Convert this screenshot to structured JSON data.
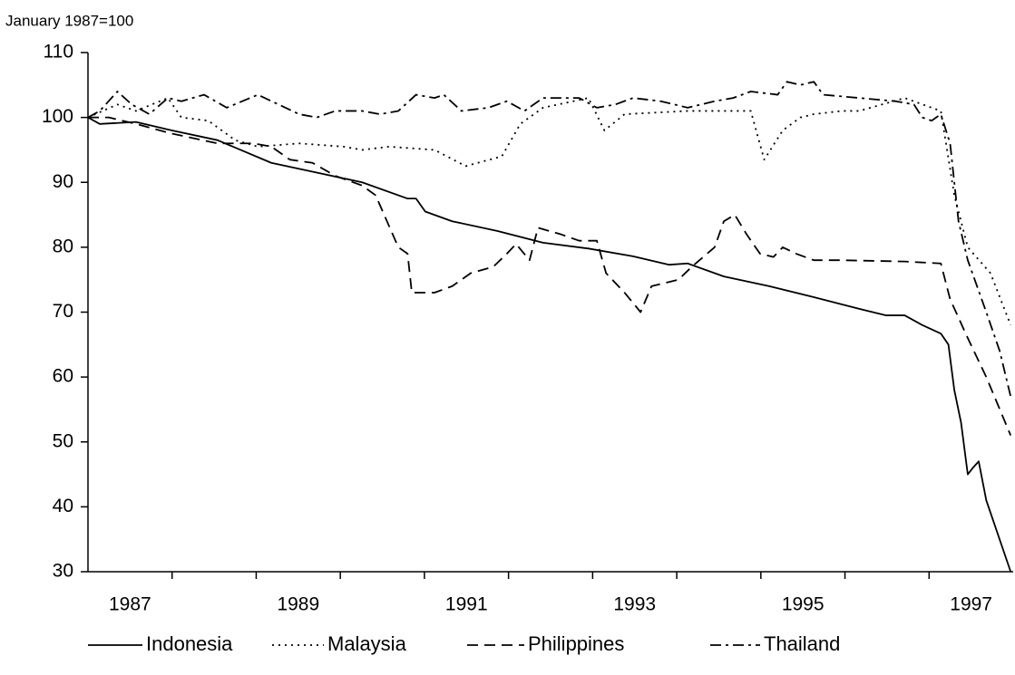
{
  "chart_data": {
    "type": "line",
    "y_label": "January 1987=100",
    "xlim": [
      1987,
      1998
    ],
    "xticks": [
      {
        "value": 1987.5,
        "label": "1987"
      },
      {
        "value": 1989.5,
        "label": "1989"
      },
      {
        "value": 1991.5,
        "label": "1991"
      },
      {
        "value": 1993.5,
        "label": "1993"
      },
      {
        "value": 1995.5,
        "label": "1995"
      },
      {
        "value": 1997.5,
        "label": "1997"
      }
    ],
    "xtick_marks": [
      1988,
      1989,
      1990,
      1991,
      1992,
      1993,
      1994,
      1995,
      1996,
      1997
    ],
    "ylim": [
      30,
      110
    ],
    "yticks": [
      30,
      40,
      50,
      60,
      70,
      80,
      90,
      100,
      110
    ],
    "legend": "bottom",
    "series": [
      {
        "name": "Indonesia",
        "color": "#000000",
        "dash": "solid",
        "x": [
          1987.0,
          1987.14,
          1987.57,
          1988.0,
          1988.54,
          1989.18,
          1989.72,
          1990.26,
          1990.8,
          1990.9,
          1991.01,
          1991.33,
          1991.87,
          1992.41,
          1992.95,
          1993.48,
          1993.91,
          1994.13,
          1994.56,
          1995.1,
          1995.63,
          1996.17,
          1996.49,
          1996.71,
          1996.92,
          1997.14,
          1997.23,
          1997.3,
          1997.38,
          1997.46,
          1997.52,
          1997.59,
          1997.68,
          1997.97
        ],
        "values": [
          100,
          99,
          99.3,
          98,
          96.5,
          93,
          91.5,
          90,
          87.5,
          87.5,
          85.5,
          84,
          82.5,
          80.7,
          79.8,
          78.6,
          77.3,
          77.5,
          75.5,
          74,
          72.3,
          70.5,
          69.5,
          69.5,
          68,
          66.7,
          65,
          58,
          53,
          45,
          46,
          47,
          41,
          30
        ]
      },
      {
        "name": "Malaysia",
        "color": "#000000",
        "dash": "dotted",
        "x": [
          1987.0,
          1987.35,
          1987.57,
          1987.95,
          1988.11,
          1988.43,
          1988.75,
          1989.02,
          1989.51,
          1990.04,
          1990.26,
          1990.58,
          1991.12,
          1991.49,
          1991.92,
          1992.14,
          1992.41,
          1992.95,
          1993.14,
          1993.38,
          1994.13,
          1994.88,
          1995.04,
          1995.26,
          1995.47,
          1995.63,
          1995.96,
          1996.17,
          1996.71,
          1997.03,
          1997.14,
          1997.3,
          1997.46,
          1997.73,
          1997.97
        ],
        "values": [
          100,
          102,
          101,
          103,
          100,
          99.5,
          96.5,
          95.5,
          96,
          95.5,
          95,
          95.5,
          95,
          92.5,
          94,
          99,
          101.5,
          103,
          98,
          100.5,
          101,
          101,
          93.5,
          98,
          100,
          100.5,
          101,
          101,
          103,
          101.5,
          101,
          88,
          80,
          76,
          68
        ]
      },
      {
        "name": "Philippines",
        "color": "#000000",
        "dash": "dashed",
        "x": [
          1987.0,
          1987.25,
          1987.57,
          1988.0,
          1988.54,
          1988.97,
          1989.18,
          1989.4,
          1989.67,
          1989.94,
          1990.26,
          1990.42,
          1990.69,
          1990.8,
          1990.85,
          1991.12,
          1991.33,
          1991.55,
          1991.82,
          1991.98,
          1992.09,
          1992.25,
          1992.35,
          1992.62,
          1992.84,
          1993.05,
          1993.16,
          1993.38,
          1993.57,
          1993.7,
          1994.02,
          1994.18,
          1994.45,
          1994.56,
          1994.69,
          1994.83,
          1994.99,
          1995.15,
          1995.26,
          1995.42,
          1995.63,
          1995.96,
          1996.71,
          1997.14,
          1997.25,
          1997.46,
          1997.68,
          1997.97
        ],
        "values": [
          100,
          100,
          99,
          97.5,
          96,
          96,
          95.5,
          93.5,
          93,
          91,
          89.5,
          88,
          80,
          79,
          73,
          73,
          74,
          76,
          77,
          79,
          80.5,
          78,
          83,
          82,
          81,
          81,
          76,
          73,
          70,
          74,
          75,
          77,
          80,
          84,
          85,
          82,
          79,
          78.5,
          80,
          79,
          78,
          78,
          77.8,
          77.5,
          72,
          66,
          60,
          51
        ]
      },
      {
        "name": "Thailand",
        "color": "#000000",
        "dash": "dashdot",
        "x": [
          1987.0,
          1987.14,
          1987.35,
          1987.52,
          1987.73,
          1987.95,
          1988.11,
          1988.38,
          1988.65,
          1989.02,
          1989.51,
          1989.72,
          1989.94,
          1990.26,
          1990.47,
          1990.69,
          1990.9,
          1991.12,
          1991.23,
          1991.44,
          1991.76,
          1991.98,
          1992.19,
          1992.41,
          1992.84,
          1993.05,
          1993.27,
          1993.48,
          1993.81,
          1994.13,
          1994.45,
          1994.67,
          1994.88,
          1995.2,
          1995.31,
          1995.47,
          1995.63,
          1995.74,
          1996.17,
          1996.6,
          1996.82,
          1996.92,
          1997.03,
          1997.14,
          1997.25,
          1997.35,
          1997.46,
          1997.68,
          1997.84,
          1997.97
        ],
        "values": [
          100,
          101,
          104,
          102,
          100.5,
          103,
          102.5,
          103.5,
          101.5,
          103.5,
          100.5,
          100,
          101,
          101,
          100.5,
          101,
          103.5,
          103,
          103.5,
          101,
          101.5,
          102.5,
          101,
          103,
          103,
          101.5,
          102,
          103,
          102.5,
          101.5,
          102.5,
          103,
          104,
          103.5,
          105.5,
          105,
          105.5,
          103.5,
          103,
          102.5,
          102,
          100,
          99.5,
          100.5,
          96,
          84,
          78,
          70,
          64,
          57
        ]
      }
    ]
  }
}
